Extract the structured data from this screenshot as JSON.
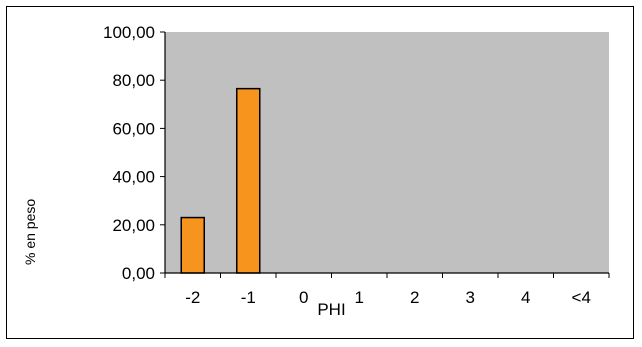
{
  "chart_data": {
    "type": "bar",
    "categories": [
      "-2",
      "-1",
      "0",
      "1",
      "2",
      "3",
      "4",
      "<4"
    ],
    "values": [
      23,
      76.5,
      0,
      0,
      0,
      0,
      0,
      0
    ],
    "xlabel": "PHI",
    "ylabel": "% en peso",
    "ylim": [
      0,
      100
    ],
    "yticks": [
      "0,00",
      "20,00",
      "40,00",
      "60,00",
      "80,00",
      "100,00"
    ],
    "plot_background": "#c0c0c0",
    "bar_color": "#f7941d",
    "bar_edge_color": "#000000",
    "grid": false,
    "legend": "none"
  }
}
